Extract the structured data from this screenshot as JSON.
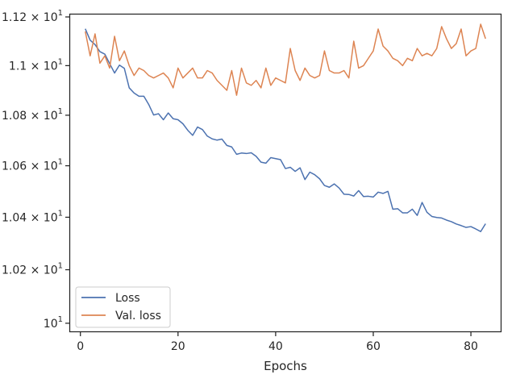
{
  "chart_data": {
    "type": "line",
    "title": "",
    "xlabel": "Epochs",
    "ylabel": "",
    "yscale": "log",
    "xlim": [
      -2.1,
      86.1
    ],
    "ylim": [
      9.97,
      11.21
    ],
    "grid": false,
    "legend_position": "bottom-left",
    "x_ticks": [
      {
        "value": 0,
        "label": "0"
      },
      {
        "value": 20,
        "label": "20"
      },
      {
        "value": 40,
        "label": "40"
      },
      {
        "value": 60,
        "label": "60"
      },
      {
        "value": 80,
        "label": "80"
      }
    ],
    "y_ticks": [
      {
        "value": 10.0,
        "label": "10",
        "exp": "1"
      },
      {
        "value": 10.2,
        "label": "1.02 × 10",
        "exp": "1"
      },
      {
        "value": 10.4,
        "label": "1.04 × 10",
        "exp": "1"
      },
      {
        "value": 10.6,
        "label": "1.06 × 10",
        "exp": "1"
      },
      {
        "value": 10.8,
        "label": "1.08 × 10",
        "exp": "1"
      },
      {
        "value": 11.0,
        "label": "1.1 × 10",
        "exp": "1"
      },
      {
        "value": 11.2,
        "label": "1.12 × 10",
        "exp": "1"
      }
    ],
    "x": [
      1,
      2,
      3,
      4,
      5,
      6,
      7,
      8,
      9,
      10,
      11,
      12,
      13,
      14,
      15,
      16,
      17,
      18,
      19,
      20,
      21,
      22,
      23,
      24,
      25,
      26,
      27,
      28,
      29,
      30,
      31,
      32,
      33,
      34,
      35,
      36,
      37,
      38,
      39,
      40,
      41,
      42,
      43,
      44,
      45,
      46,
      47,
      48,
      49,
      50,
      51,
      52,
      53,
      54,
      55,
      56,
      57,
      58,
      59,
      60,
      61,
      62,
      63,
      64,
      65,
      66,
      67,
      68,
      69,
      70,
      71,
      72,
      73,
      74,
      75,
      76,
      77,
      78,
      79,
      80,
      81,
      82,
      83
    ],
    "series": [
      {
        "name": "Loss",
        "color": "#4c72b0",
        "values": [
          11.151,
          11.104,
          11.086,
          11.057,
          11.047,
          11.008,
          10.97,
          11.002,
          10.989,
          10.91,
          10.889,
          10.876,
          10.876,
          10.843,
          10.801,
          10.806,
          10.782,
          10.809,
          10.786,
          10.782,
          10.766,
          10.74,
          10.72,
          10.753,
          10.743,
          10.717,
          10.706,
          10.701,
          10.705,
          10.68,
          10.674,
          10.645,
          10.65,
          10.648,
          10.651,
          10.637,
          10.614,
          10.61,
          10.632,
          10.628,
          10.624,
          10.589,
          10.594,
          10.578,
          10.592,
          10.546,
          10.575,
          10.565,
          10.549,
          10.523,
          10.516,
          10.529,
          10.513,
          10.489,
          10.488,
          10.482,
          10.503,
          10.48,
          10.481,
          10.478,
          10.497,
          10.492,
          10.5,
          10.431,
          10.433,
          10.417,
          10.417,
          10.431,
          10.407,
          10.457,
          10.419,
          10.403,
          10.399,
          10.397,
          10.389,
          10.383,
          10.374,
          10.368,
          10.361,
          10.364,
          10.355,
          10.345,
          10.375
        ]
      },
      {
        "name": "Val. loss",
        "color": "#dd8452",
        "values": [
          11.14,
          11.04,
          11.13,
          11.01,
          11.04,
          10.99,
          11.12,
          11.02,
          11.06,
          11.0,
          10.96,
          10.99,
          10.98,
          10.96,
          10.95,
          10.96,
          10.97,
          10.95,
          10.91,
          10.99,
          10.95,
          10.97,
          10.99,
          10.95,
          10.95,
          10.98,
          10.97,
          10.94,
          10.92,
          10.9,
          10.98,
          10.88,
          10.99,
          10.93,
          10.92,
          10.94,
          10.91,
          10.99,
          10.92,
          10.95,
          10.94,
          10.93,
          11.07,
          10.98,
          10.94,
          10.99,
          10.96,
          10.95,
          10.96,
          11.06,
          10.98,
          10.97,
          10.97,
          10.98,
          10.95,
          11.1,
          10.99,
          11.0,
          11.03,
          11.06,
          11.15,
          11.08,
          11.06,
          11.03,
          11.02,
          11.0,
          11.03,
          11.02,
          11.07,
          11.04,
          11.05,
          11.04,
          11.07,
          11.16,
          11.11,
          11.07,
          11.09,
          11.15,
          11.04,
          11.06,
          11.07,
          11.17,
          11.11
        ]
      }
    ]
  }
}
